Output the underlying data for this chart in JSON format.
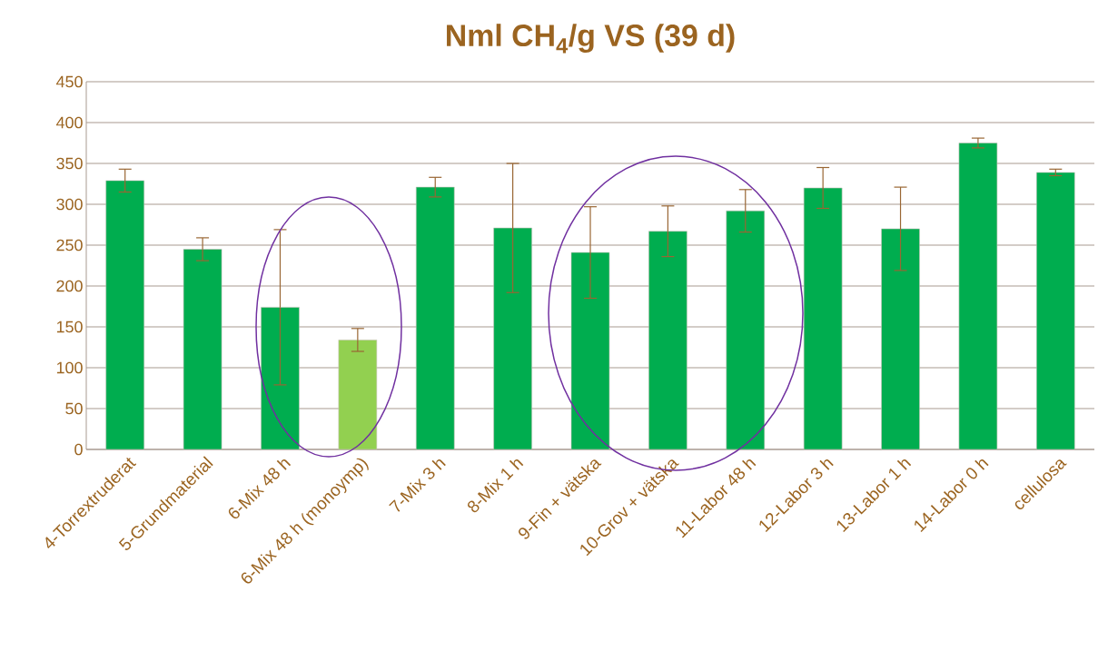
{
  "chart_data": {
    "type": "bar",
    "title": "Nml CH$_{4}$/g VS (39 d)",
    "categories": [
      "4-Torrextruderat",
      "5-Grundmaterial",
      "6-Mix 48 h",
      "6-Mix 48 h (monoymp)",
      "7-Mix 3 h",
      "8-Mix 1 h",
      "9-Fin + vätska",
      "10-Grov + vätska",
      "11-Labor 48 h",
      "12-Labor 3 h",
      "13-Labor 1 h",
      "14-Labor 0 h",
      "cellulosa"
    ],
    "values": [
      329,
      245,
      174,
      134,
      321,
      271,
      241,
      267,
      292,
      320,
      270,
      375,
      339
    ],
    "errors": [
      14,
      14,
      95,
      14,
      12,
      79,
      56,
      31,
      26,
      25,
      51,
      6,
      4
    ],
    "colors": [
      "#00ad4f",
      "#00ad4f",
      "#00ad4f",
      "#92d050",
      "#00ad4f",
      "#00ad4f",
      "#00ad4f",
      "#00ad4f",
      "#00ad4f",
      "#00ad4f",
      "#00ad4f",
      "#00ad4f",
      "#00ad4f"
    ],
    "ylim": [
      0,
      450
    ],
    "yticks": [
      0,
      50,
      100,
      150,
      200,
      250,
      300,
      350,
      400,
      450
    ],
    "grid": "y"
  }
}
